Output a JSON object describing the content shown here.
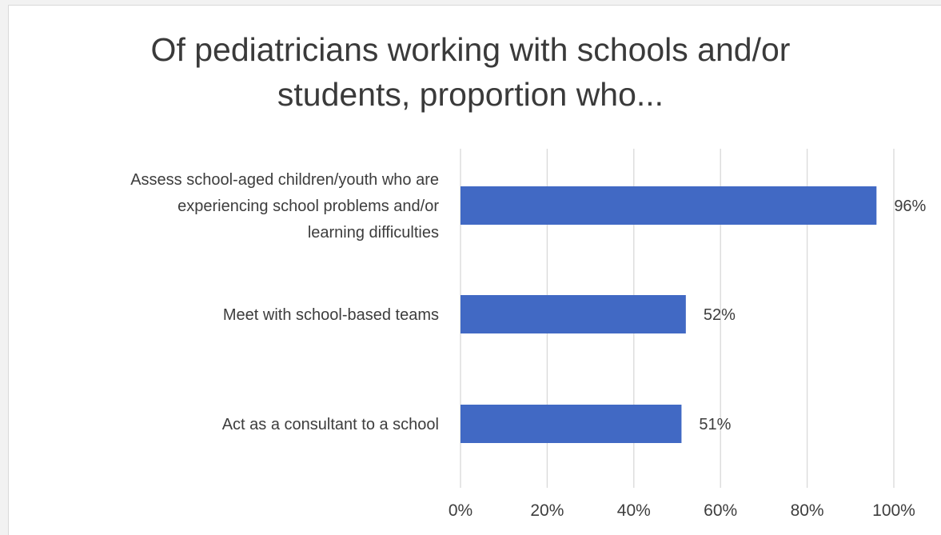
{
  "chart_data": {
    "type": "bar",
    "orientation": "horizontal",
    "title_lines": [
      "Of pediatricians working with schools and/or",
      "students, proportion who..."
    ],
    "categories": [
      [
        "Assess school-aged children/youth who are",
        "experiencing school problems and/or",
        "learning difficulties"
      ],
      [
        "Meet with school-based teams"
      ],
      [
        "Act as a consultant to a school"
      ]
    ],
    "values": [
      96,
      52,
      51
    ],
    "data_labels": [
      "96%",
      "52%",
      "51%"
    ],
    "xlim": [
      0,
      100
    ],
    "x_ticks": [
      0,
      20,
      40,
      60,
      80,
      100
    ],
    "x_tick_labels": [
      "0%",
      "20%",
      "40%",
      "60%",
      "80%",
      "100%"
    ],
    "grid": "vertical",
    "legend": "none",
    "bar_color": "#4169c4",
    "grid_color": "#d9d9d9"
  }
}
